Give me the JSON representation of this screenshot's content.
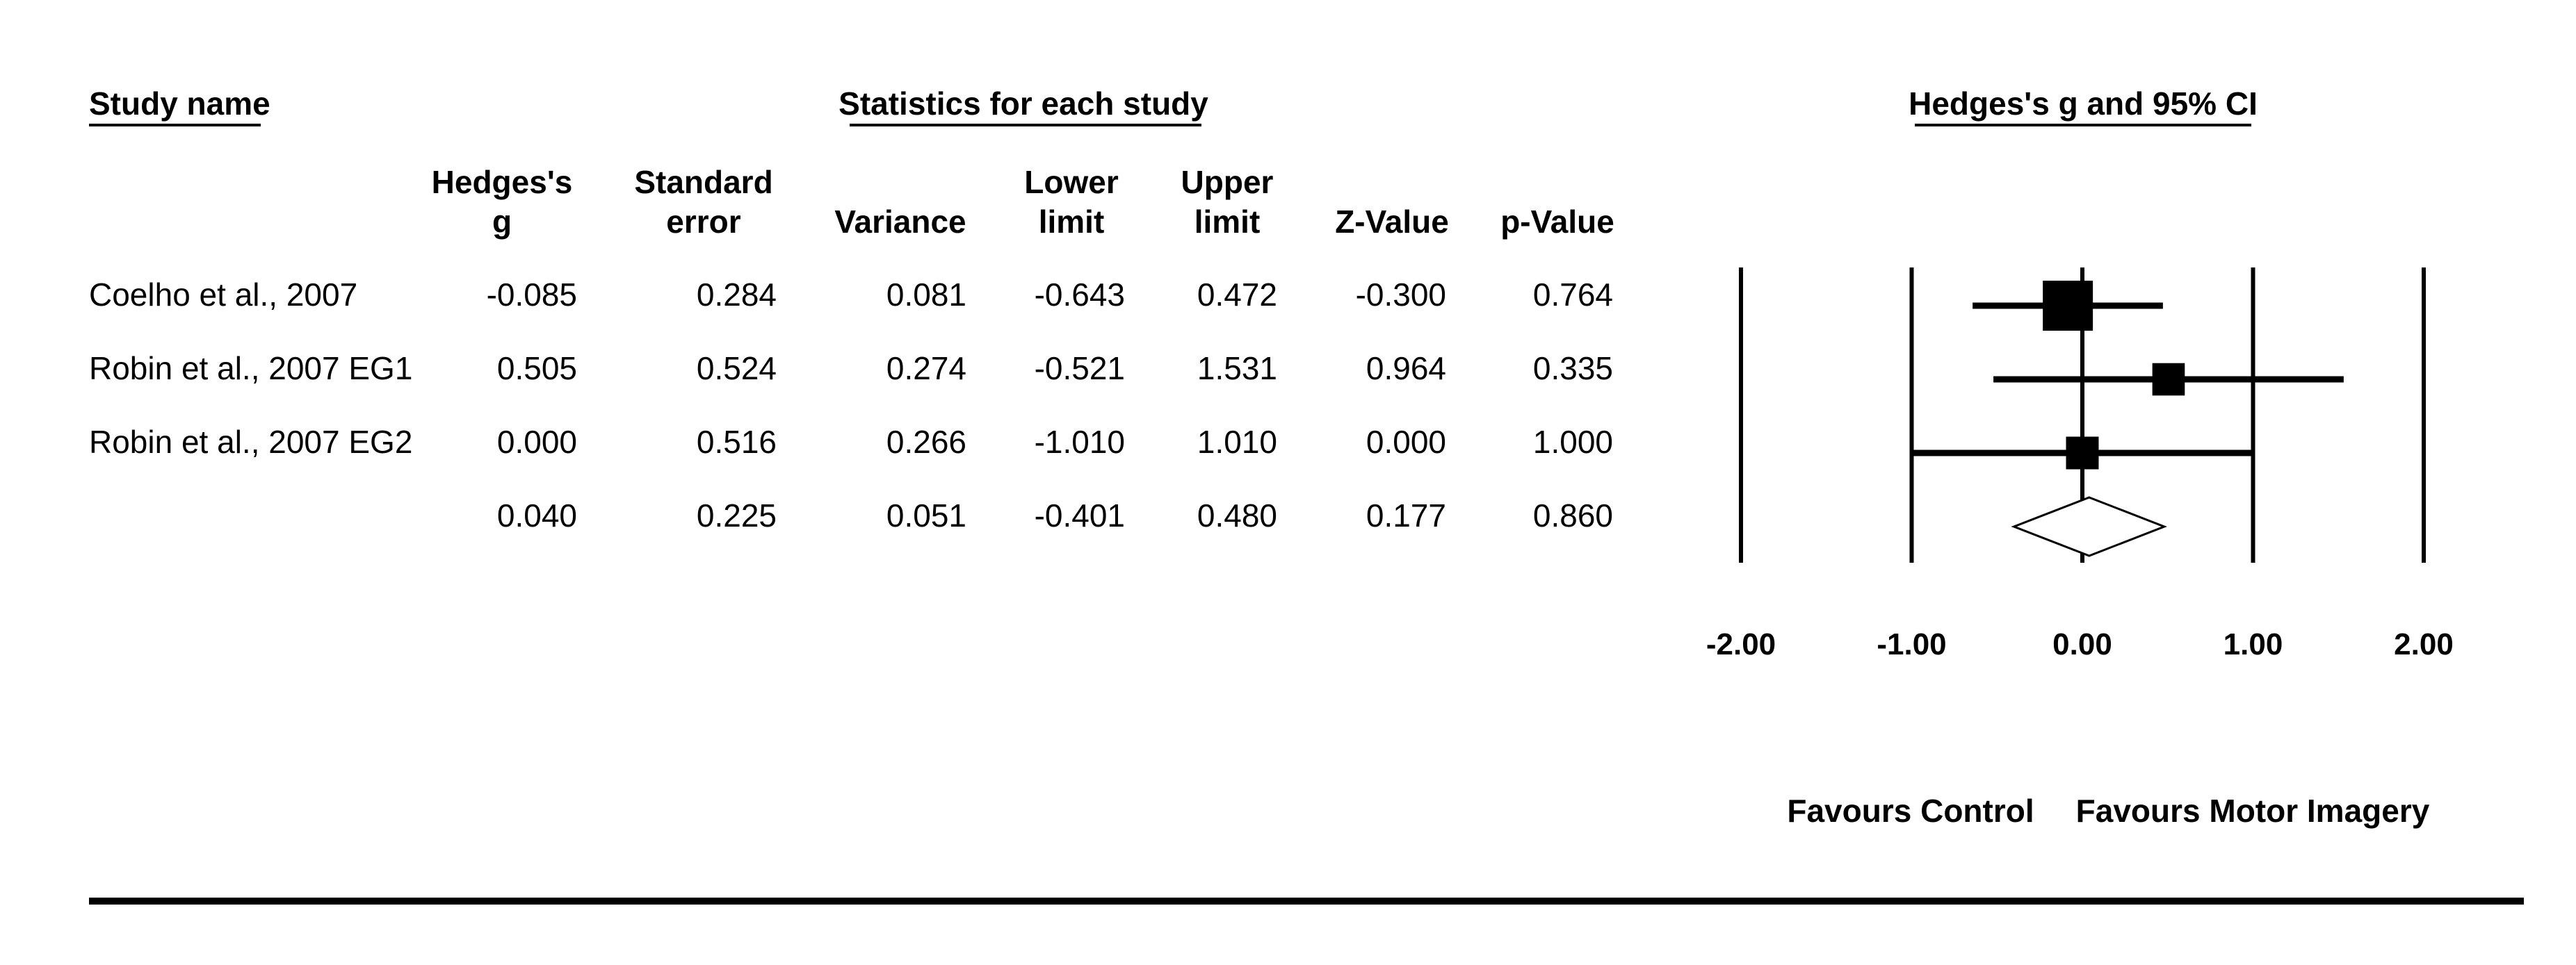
{
  "table": {
    "section_headers": {
      "study_name": "Study name",
      "statistics": "Statistics for each study",
      "plot": "Hedges's g and 95% CI"
    },
    "columns": [
      {
        "key": "g",
        "label_lines": [
          "Hedges's",
          "g"
        ]
      },
      {
        "key": "se",
        "label_lines": [
          "Standard",
          "error"
        ]
      },
      {
        "key": "var",
        "label_lines": [
          "",
          "Variance"
        ]
      },
      {
        "key": "lower",
        "label_lines": [
          "Lower",
          "limit"
        ]
      },
      {
        "key": "upper",
        "label_lines": [
          "Upper",
          "limit"
        ]
      },
      {
        "key": "z",
        "label_lines": [
          "",
          "Z-Value"
        ]
      },
      {
        "key": "p",
        "label_lines": [
          "",
          "p-Value"
        ]
      }
    ],
    "rows": [
      {
        "name": "Coelho et al., 2007",
        "g": "-0.085",
        "se": "0.284",
        "var": "0.081",
        "lower": "-0.643",
        "upper": "0.472",
        "z": "-0.300",
        "p": "0.764"
      },
      {
        "name": "Robin et al., 2007 EG1",
        "g": "0.505",
        "se": "0.524",
        "var": "0.274",
        "lower": "-0.521",
        "upper": "1.531",
        "z": "0.964",
        "p": "0.335"
      },
      {
        "name": "Robin et al., 2007 EG2",
        "g": "0.000",
        "se": "0.516",
        "var": "0.266",
        "lower": "-1.010",
        "upper": "1.010",
        "z": "0.000",
        "p": "1.000"
      },
      {
        "name": "",
        "g": "0.040",
        "se": "0.225",
        "var": "0.051",
        "lower": "-0.401",
        "upper": "0.480",
        "z": "0.177",
        "p": "0.860"
      }
    ]
  },
  "chart_data": {
    "type": "scatter",
    "subtype": "forest",
    "title": "Hedges's g and 95% CI",
    "xlim": [
      -2,
      2
    ],
    "x_ticks": [
      "-2.00",
      "-1.00",
      "0.00",
      "1.00",
      "2.00"
    ],
    "x_tick_values": [
      -2,
      -1,
      0,
      1,
      2
    ],
    "reference_lines": [
      -2,
      -1,
      0,
      1,
      2
    ],
    "studies": [
      {
        "name": "Coelho et al., 2007",
        "g": -0.085,
        "lower": -0.643,
        "upper": 0.472,
        "weight": 0.081
      },
      {
        "name": "Robin et al., 2007 EG1",
        "g": 0.505,
        "lower": -0.521,
        "upper": 1.531,
        "weight": 0.274
      },
      {
        "name": "Robin et al., 2007 EG2",
        "g": 0.0,
        "lower": -1.01,
        "upper": 1.01,
        "weight": 0.266
      }
    ],
    "summary": {
      "g": 0.04,
      "lower": -0.401,
      "upper": 0.48
    },
    "favours_left": "Favours Control",
    "favours_right": "Favours Motor Imagery"
  }
}
